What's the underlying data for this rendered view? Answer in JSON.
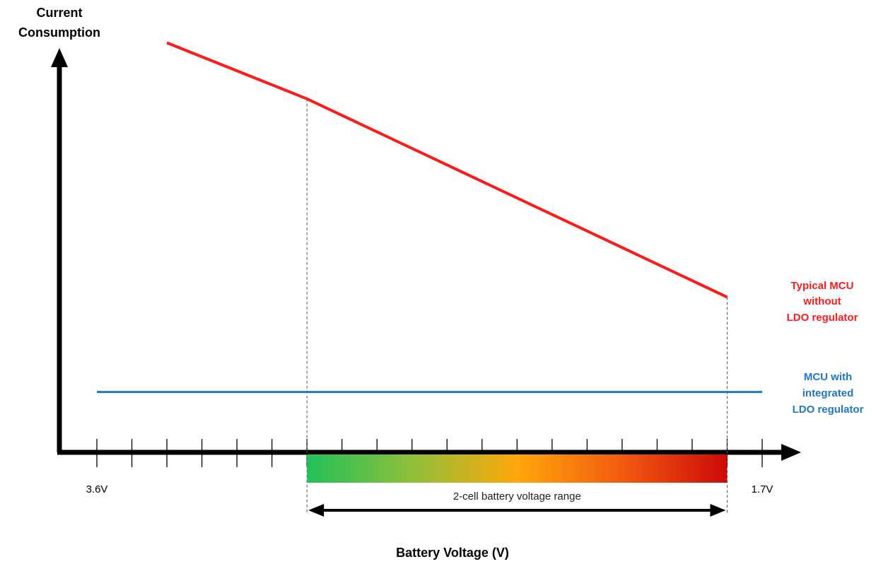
{
  "chart_data": {
    "type": "line",
    "ylabel": [
      "Current",
      "Consumption"
    ],
    "xlabel": "Battery Voltage (V)",
    "x_start_label": "3.6V",
    "x_end_label": "1.7V",
    "xlim": [
      3.6,
      1.7
    ],
    "tick_count": 20,
    "series": [
      {
        "name": [
          "Typical MCU",
          "without",
          "LDO regulator"
        ],
        "color": "#ff1a1a",
        "x": [
          3.4,
          3.0,
          1.8
        ],
        "y": [
          0.95,
          0.82,
          0.36
        ]
      },
      {
        "name": [
          "MCU with",
          "integrated",
          "LDO regulator"
        ],
        "color": "#1f78c1",
        "x": [
          3.6,
          1.7
        ],
        "y": [
          0.14,
          0.14
        ]
      }
    ],
    "range": {
      "label": "2-cell battery voltage range",
      "from": 3.0,
      "to": 1.8,
      "gradient": [
        "#22c05a",
        "#8ec03a",
        "#ffa70a",
        "#f25a10",
        "#cc0a0a"
      ]
    }
  }
}
